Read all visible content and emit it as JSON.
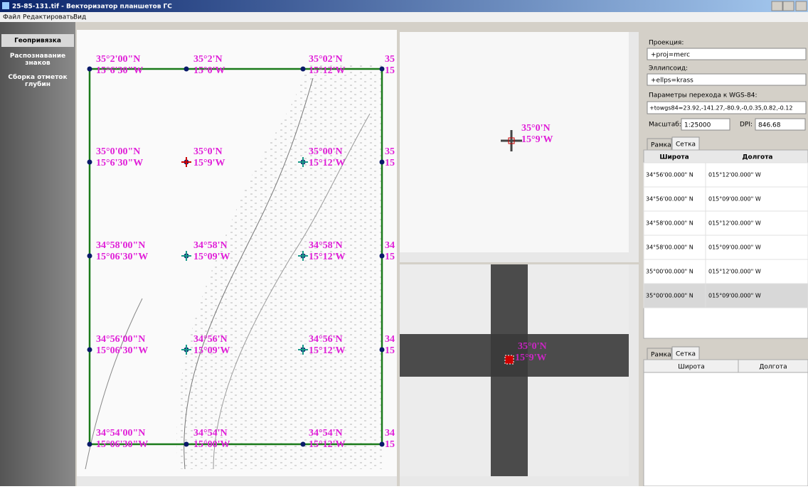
{
  "window": {
    "title": "25-85-131.tif - Векторизатор планшетов ГС"
  },
  "menu": [
    "Файл",
    "Редактировать",
    "Вид"
  ],
  "sidebar": [
    "Геопривязка",
    "Распознавание знаков",
    "Сборка отметок глубин"
  ],
  "map": {
    "labels": [
      [
        {
          "lat": "35°2'00\"N",
          "lon": "15°6'30\"W"
        },
        {
          "lat": "35°2'N",
          "lon": "15°0'W"
        },
        {
          "lat": "35°02'N",
          "lon": "15°12'W"
        },
        {
          "lat": "35",
          "lon": "15"
        }
      ],
      [
        {
          "lat": "35°0'00\"N",
          "lon": "15°6'30\"W"
        },
        {
          "lat": "35°0'N",
          "lon": "15°9'W"
        },
        {
          "lat": "35°00'N",
          "lon": "15°12'W"
        },
        {
          "lat": "35",
          "lon": "15"
        }
      ],
      [
        {
          "lat": "34°58'00\"N",
          "lon": "15°06'30\"W"
        },
        {
          "lat": "34°58'N",
          "lon": "15°09'W"
        },
        {
          "lat": "34°58'N",
          "lon": "15°12'W"
        },
        {
          "lat": "34",
          "lon": "15"
        }
      ],
      [
        {
          "lat": "34°56'00\"N",
          "lon": "15°06'30\"W"
        },
        {
          "lat": "34°56'N",
          "lon": "15°09'W"
        },
        {
          "lat": "34°56'N",
          "lon": "15°12'W"
        },
        {
          "lat": "34",
          "lon": "15"
        }
      ],
      [
        {
          "lat": "34°54'00\"N",
          "lon": "15°06'30\"W"
        },
        {
          "lat": "34°54'N",
          "lon": "15°00'W"
        },
        {
          "lat": "34°54'N",
          "lon": "15°12'W"
        },
        {
          "lat": "34",
          "lon": "15"
        }
      ]
    ]
  },
  "preview": {
    "lat": "35°0'N",
    "lon": "15°9'W"
  },
  "zoom": {
    "lat": "35°0'N",
    "lon": "15°9'W"
  },
  "settings": {
    "projection_label": "Проекция:",
    "projection": "+proj=merc",
    "ellipsoid_label": "Эллипсоид:",
    "ellipsoid": "+ellps=krass",
    "towgs_label": "Параметры перехода к WGS-84:",
    "towgs": "+towgs84=23.92,-141.27,-80.9,-0,0.35,0.82,-0.12",
    "scale_label": "Масштаб:",
    "scale": "1:25000",
    "dpi_label": "DPI:",
    "dpi": "846.68"
  },
  "tabs": [
    "Рамка",
    "Сетка"
  ],
  "table": {
    "header": [
      "Широта",
      "Долгота"
    ],
    "rows": [
      [
        "34°56'00.000\" N",
        "015°12'00.000\" W"
      ],
      [
        "34°56'00.000\" N",
        "015°09'00.000\" W"
      ],
      [
        "34°58'00.000\" N",
        "015°12'00.000\" W"
      ],
      [
        "34°58'00.000\" N",
        "015°09'00.000\" W"
      ],
      [
        "35°00'00.000\" N",
        "015°12'00.000\" W"
      ],
      [
        "35°00'00.000\" N",
        "015°09'00.000\" W"
      ]
    ]
  },
  "tabs2": [
    "Рамка",
    "Сетка"
  ],
  "table2": {
    "header": [
      "Широта",
      "Долгота"
    ]
  }
}
